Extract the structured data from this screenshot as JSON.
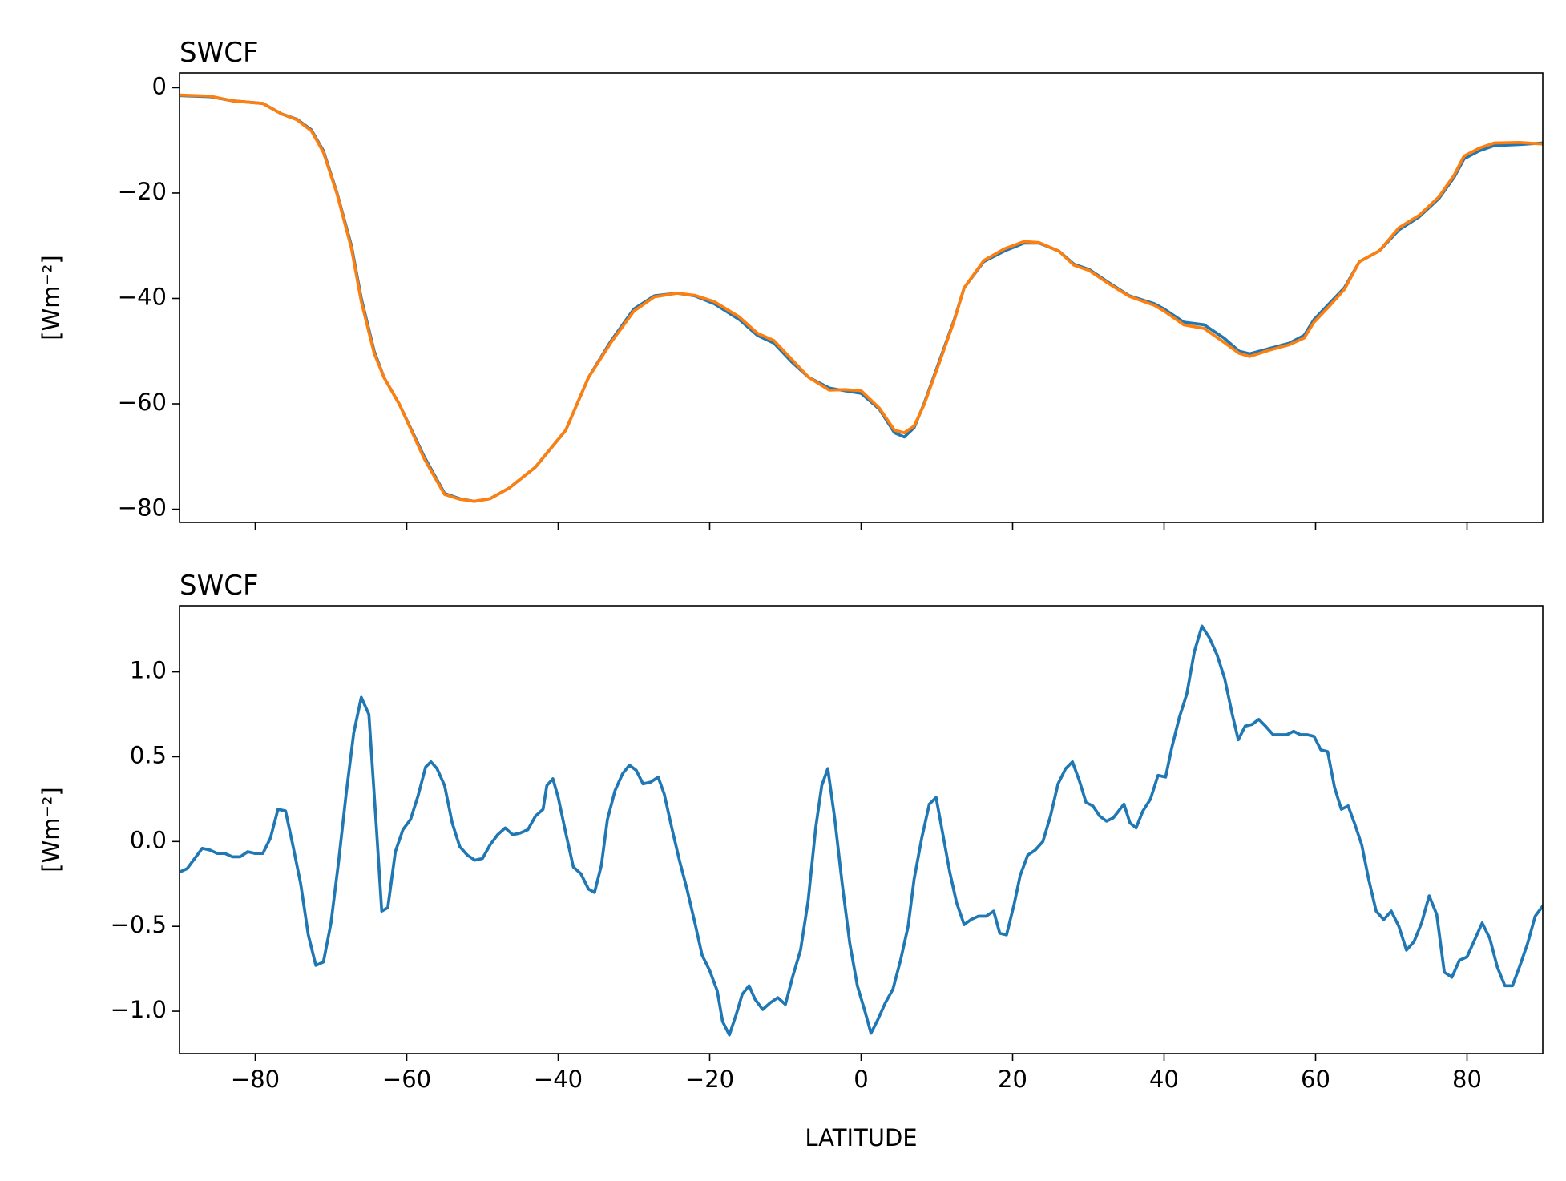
{
  "chart_data": [
    {
      "type": "line",
      "title": "SWCF",
      "ylabel": "[Wm⁻²]",
      "x": [
        -90,
        -86,
        -83,
        -79,
        -76.5,
        -74.5,
        -72.6,
        -71.8,
        -71,
        -69.2,
        -67.3,
        -66,
        -64.3,
        -63,
        -61,
        -57.7,
        -55,
        -53,
        -51.1,
        -49,
        -46.5,
        -43,
        -39,
        -36,
        -33,
        -30,
        -27.3,
        -24.3,
        -22,
        -19.4,
        -16.1,
        -13.7,
        -11.5,
        -9.2,
        -6.9,
        -4.2,
        -2.2,
        0,
        2.4,
        4.4,
        5.7,
        7,
        8.3,
        10.3,
        12.3,
        13.6,
        16.2,
        18.9,
        21.5,
        23.5,
        26.1,
        28.1,
        30.1,
        32.7,
        35.4,
        38.7,
        40,
        42.6,
        45.3,
        47.9,
        49.9,
        51.3,
        53.9,
        56.5,
        58.5,
        59.8,
        61.8,
        63.8,
        65.8,
        68.4,
        71,
        73.7,
        76.3,
        78.3,
        79.6,
        81.6,
        83.6,
        86.9,
        90
      ],
      "series": [
        {
          "color": "#1f77b4",
          "values": [
            -1.5,
            -1.7,
            -2.5,
            -3,
            -5,
            -6,
            -8,
            -10,
            -12,
            -20,
            -30,
            -40,
            -50,
            -55,
            -60,
            -70,
            -77,
            -78,
            -78.5,
            -78,
            -76,
            -72,
            -65,
            -55,
            -48,
            -42,
            -39.5,
            -39,
            -39.5,
            -41,
            -44,
            -47,
            -48.5,
            -52,
            -55,
            -57,
            -57.5,
            -58,
            -61,
            -65.5,
            -66.3,
            -64.5,
            -60,
            -52,
            -44,
            -38,
            -33,
            -31,
            -29.5,
            -29.5,
            -31,
            -33.5,
            -34.5,
            -37,
            -39.5,
            -41,
            -42,
            -44.5,
            -45,
            -47.5,
            -50,
            -50.5,
            -49.5,
            -48.5,
            -47,
            -44,
            -41,
            -38,
            -33,
            -31,
            -27,
            -24.5,
            -21,
            -17,
            -13.5,
            -12,
            -11,
            -10.8,
            -10.5
          ]
        },
        {
          "color": "#ff7f0e",
          "values": [
            -1.4,
            -1.6,
            -2.5,
            -3,
            -5,
            -6.1,
            -8.2,
            -10.2,
            -12.3,
            -20.2,
            -30.5,
            -40.6,
            -50.4,
            -55,
            -60,
            -70.4,
            -77.2,
            -78.1,
            -78.5,
            -78,
            -76,
            -72,
            -65,
            -55,
            -48.3,
            -42.4,
            -39.7,
            -39,
            -39.4,
            -40.6,
            -43.5,
            -46.6,
            -48,
            -51.5,
            -55,
            -57.4,
            -57.3,
            -57.5,
            -60.8,
            -65,
            -65.5,
            -64.2,
            -60.2,
            -52.3,
            -44.2,
            -38,
            -32.8,
            -30.6,
            -29.2,
            -29.4,
            -31,
            -33.7,
            -34.7,
            -37.2,
            -39.6,
            -41.3,
            -42.4,
            -45,
            -45.7,
            -48.3,
            -50.4,
            -51,
            -49.8,
            -48.8,
            -47.5,
            -44.5,
            -41.5,
            -38.3,
            -33,
            -31,
            -26.6,
            -24.2,
            -20.7,
            -16.6,
            -13,
            -11.5,
            -10.5,
            -10.4,
            -10.7
          ]
        }
      ],
      "xlim": [
        -90,
        90
      ],
      "ylim": [
        -82.5,
        2.8
      ],
      "xticks": [
        -80,
        -60,
        -40,
        -20,
        0,
        20,
        40,
        60,
        80
      ],
      "xtick_labels": false,
      "yticks": [
        {
          "value": -80,
          "label": "−80"
        },
        {
          "value": -60,
          "label": "−60"
        },
        {
          "value": -40,
          "label": "−40"
        },
        {
          "value": -20,
          "label": "−20"
        },
        0
      ]
    },
    {
      "type": "line",
      "title": "SWCF",
      "ylabel": "[Wm⁻²]",
      "xlabel": "LATITUDE",
      "x": [
        -90,
        -89,
        -88,
        -87,
        -86,
        -85,
        -84,
        -83,
        -82,
        -81,
        -80,
        -79,
        -78,
        -77,
        -76,
        -75,
        -74,
        -73,
        -72,
        -71,
        -70,
        -69,
        -68,
        -67,
        -66,
        -65,
        -64,
        -63.3,
        -62.5,
        -61.5,
        -60.5,
        -59.5,
        -58.5,
        -57.5,
        -56.8,
        -56,
        -55,
        -54,
        -53,
        -52,
        -51,
        -50,
        -49,
        -48,
        -47,
        -46,
        -45,
        -44,
        -43,
        -42,
        -41.5,
        -40.7,
        -40,
        -39,
        -38,
        -37,
        -36,
        -35.2,
        -34.3,
        -33.5,
        -32.5,
        -31.5,
        -30.6,
        -29.7,
        -28.8,
        -27.8,
        -26.8,
        -26,
        -25,
        -24,
        -23,
        -22,
        -21,
        -20,
        -19,
        -18.3,
        -17.4,
        -16.5,
        -15.7,
        -14.8,
        -14,
        -13,
        -12,
        -11,
        -10,
        -9,
        -8,
        -7,
        -6,
        -5.2,
        -4.4,
        -3.5,
        -2.5,
        -1.5,
        -0.5,
        0.5,
        1.3,
        2.2,
        3.2,
        4.2,
        5.2,
        6.2,
        7,
        8,
        9,
        9.9,
        10.8,
        11.7,
        12.6,
        13.6,
        14.5,
        15.5,
        16.5,
        17.5,
        18.3,
        19.2,
        20.2,
        21,
        22,
        23,
        24,
        25,
        26,
        27,
        27.9,
        28.8,
        29.7,
        30.6,
        31.5,
        32.4,
        33.3,
        34.7,
        35.5,
        36.3,
        37.2,
        38.2,
        39.2,
        40.2,
        41,
        42,
        43,
        44,
        45,
        46,
        47,
        48,
        49,
        49.8,
        50.7,
        51.6,
        52.5,
        53.4,
        54.4,
        55.3,
        56.2,
        57.1,
        58,
        58.9,
        59.8,
        60.7,
        61.6,
        62.5,
        63.4,
        64.3,
        65.2,
        66.1,
        67,
        68,
        69,
        70,
        71,
        72,
        73,
        74,
        75,
        76,
        77,
        78,
        79,
        80,
        81,
        82,
        83,
        84,
        85,
        86,
        87,
        88,
        89,
        90
      ],
      "series": [
        {
          "color": "#1f77b4",
          "values": [
            -0.18,
            -0.16,
            -0.1,
            -0.04,
            -0.05,
            -0.07,
            -0.07,
            -0.09,
            -0.09,
            -0.06,
            -0.07,
            -0.07,
            0.02,
            0.19,
            0.18,
            -0.03,
            -0.25,
            -0.55,
            -0.73,
            -0.71,
            -0.48,
            -0.12,
            0.28,
            0.64,
            0.85,
            0.75,
            0.08,
            -0.41,
            -0.39,
            -0.06,
            0.07,
            0.13,
            0.27,
            0.44,
            0.47,
            0.43,
            0.33,
            0.11,
            -0.03,
            -0.08,
            -0.11,
            -0.1,
            -0.02,
            0.04,
            0.08,
            0.04,
            0.05,
            0.07,
            0.15,
            0.19,
            0.33,
            0.37,
            0.26,
            0.05,
            -0.15,
            -0.19,
            -0.28,
            -0.3,
            -0.14,
            0.13,
            0.3,
            0.4,
            0.45,
            0.42,
            0.34,
            0.35,
            0.38,
            0.28,
            0.08,
            -0.11,
            -0.28,
            -0.47,
            -0.67,
            -0.76,
            -0.88,
            -1.06,
            -1.14,
            -1.02,
            -0.9,
            -0.85,
            -0.93,
            -0.99,
            -0.95,
            -0.92,
            -0.96,
            -0.79,
            -0.64,
            -0.35,
            0.08,
            0.33,
            0.43,
            0.14,
            -0.25,
            -0.6,
            -0.85,
            -1.0,
            -1.13,
            -1.05,
            -0.95,
            -0.87,
            -0.7,
            -0.5,
            -0.22,
            0.02,
            0.22,
            0.26,
            0.04,
            -0.18,
            -0.36,
            -0.49,
            -0.46,
            -0.44,
            -0.44,
            -0.41,
            -0.54,
            -0.55,
            -0.37,
            -0.2,
            -0.08,
            -0.05,
            0.0,
            0.15,
            0.34,
            0.43,
            0.47,
            0.36,
            0.23,
            0.21,
            0.15,
            0.12,
            0.14,
            0.22,
            0.11,
            0.08,
            0.18,
            0.25,
            0.39,
            0.38,
            0.55,
            0.73,
            0.87,
            1.12,
            1.27,
            1.2,
            1.1,
            0.96,
            0.75,
            0.6,
            0.68,
            0.69,
            0.72,
            0.68,
            0.63,
            0.63,
            0.63,
            0.65,
            0.63,
            0.63,
            0.62,
            0.54,
            0.53,
            0.32,
            0.19,
            0.21,
            0.1,
            -0.02,
            -0.22,
            -0.41,
            -0.46,
            -0.41,
            -0.5,
            -0.64,
            -0.59,
            -0.48,
            -0.32,
            -0.43,
            -0.77,
            -0.8,
            -0.7,
            -0.68,
            -0.58,
            -0.48,
            -0.57,
            -0.74,
            -0.85,
            -0.85,
            -0.73,
            -0.6,
            -0.44,
            -0.38
          ]
        }
      ],
      "xlim": [
        -90,
        90
      ],
      "ylim": [
        -1.25,
        1.39
      ],
      "xticks": [
        {
          "value": -80,
          "label": "−80"
        },
        {
          "value": -60,
          "label": "−60"
        },
        {
          "value": -40,
          "label": "−40"
        },
        {
          "value": -20,
          "label": "−20"
        },
        0,
        20,
        40,
        60,
        80
      ],
      "xtick_labels": true,
      "yticks": [
        {
          "value": -1.0,
          "label": "−1.0"
        },
        {
          "value": -0.5,
          "label": "−0.5"
        },
        {
          "value": 0.0,
          "label": "0.0"
        },
        {
          "value": 0.5,
          "label": "0.5"
        },
        {
          "value": 1.0,
          "label": "1.0"
        }
      ]
    }
  ]
}
